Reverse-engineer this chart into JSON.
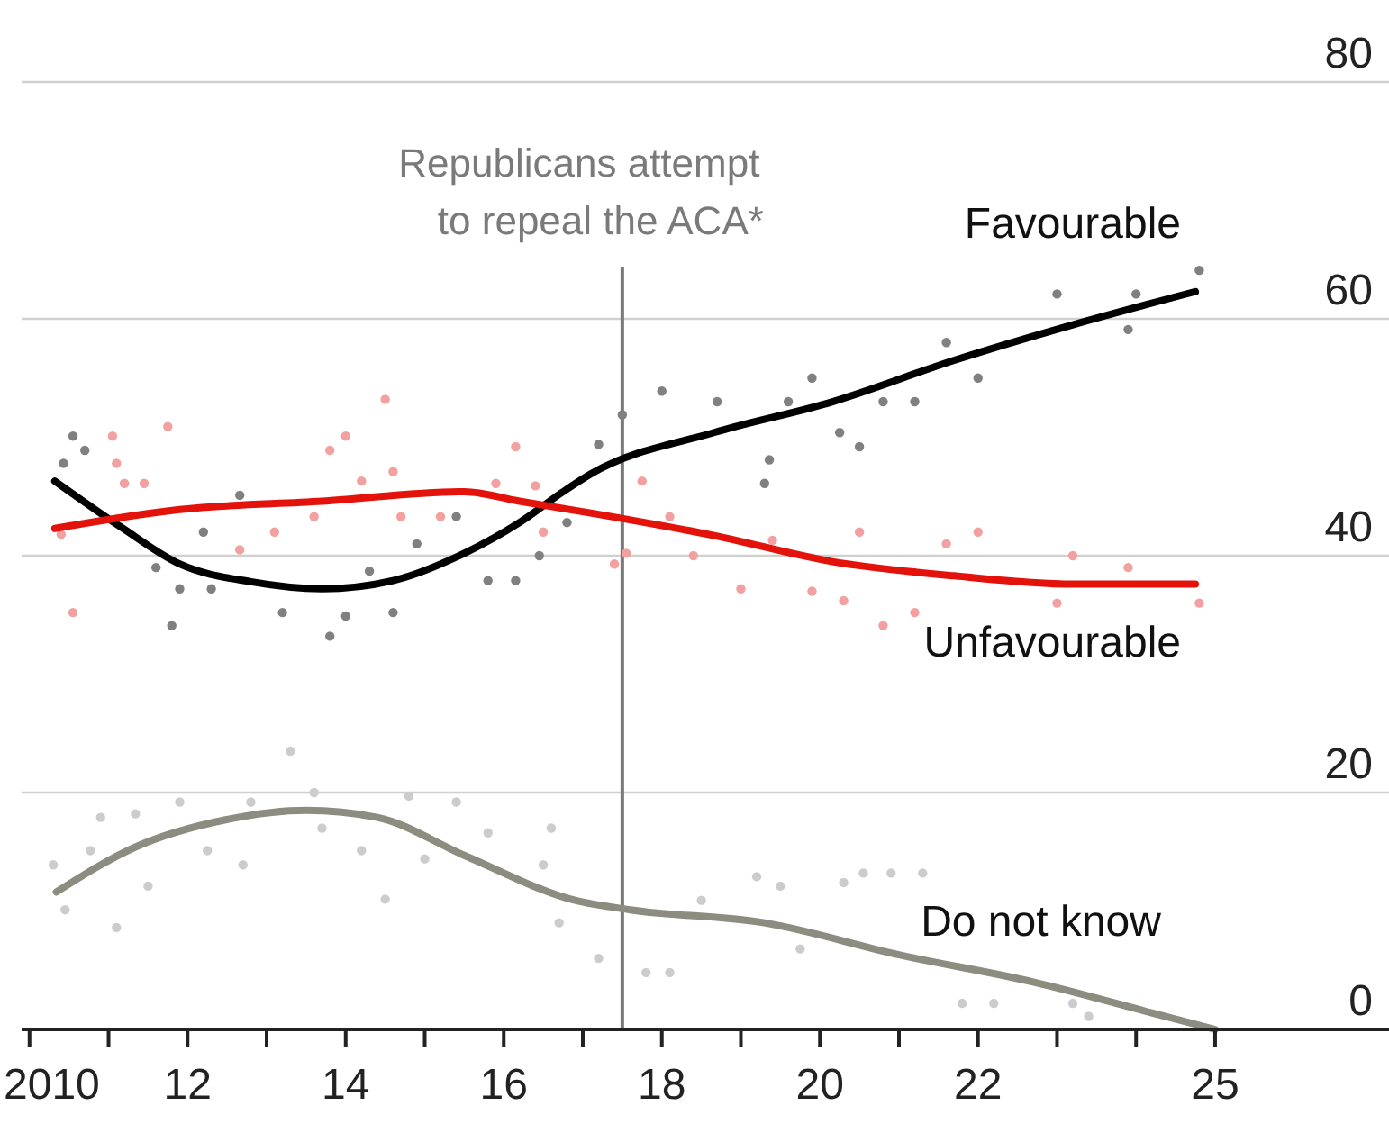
{
  "chart_data": {
    "type": "line",
    "xlim": [
      2009.9,
      2027.2
    ],
    "ylim": [
      0,
      80
    ],
    "xticks": [
      2010,
      {
        "value": 2011,
        "label": null
      },
      {
        "value": 2012,
        "label": "12"
      },
      {
        "value": 2013,
        "label": null
      },
      {
        "value": 2014,
        "label": "14"
      },
      {
        "value": 2015,
        "label": null
      },
      {
        "value": 2016,
        "label": "16"
      },
      {
        "value": 2017,
        "label": null
      },
      {
        "value": 2018,
        "label": "18"
      },
      {
        "value": 2019,
        "label": null
      },
      {
        "value": 2020,
        "label": "20"
      },
      {
        "value": 2021,
        "label": null
      },
      {
        "value": 2022,
        "label": "22"
      },
      {
        "value": 2023,
        "label": null
      },
      {
        "value": 2024,
        "label": null
      },
      {
        "value": 2025,
        "label": "25"
      }
    ],
    "yticks": [
      0,
      20,
      40,
      60,
      80
    ],
    "grid": "y",
    "legend": false,
    "ref_lines": [
      {
        "axis": "x",
        "value": 2017.5,
        "label": "Republicans attempt\nto repeal the ACA*",
        "color": "#7a7a7a"
      }
    ],
    "series": [
      {
        "type": "scatter",
        "marker": "circle",
        "color": "#808080",
        "x": [
          2010.55,
          2010.7,
          2010.43,
          2011.6,
          2011.8,
          2011.9,
          2012.3,
          2012.66,
          2012.2,
          2013.2,
          2013.8,
          2014.0,
          2014.3,
          2014.6,
          2014.9,
          2015.4,
          2015.8,
          2016.15,
          2016.45,
          2016.8,
          2017.2,
          2017.5,
          2018.0,
          2018.7,
          2019.3,
          2019.36,
          2019.6,
          2019.9,
          2020.25,
          2020.5,
          2020.8,
          2021.2,
          2021.6,
          2022.0,
          2023.0,
          2023.9,
          2024.0,
          2024.8
        ],
        "values": [
          50.1,
          48.9,
          47.8,
          39.0,
          34.1,
          37.2,
          37.2,
          45.1,
          42.0,
          35.2,
          33.2,
          34.9,
          38.7,
          35.2,
          41.0,
          43.3,
          37.9,
          37.9,
          40.0,
          42.8,
          49.4,
          51.9,
          53.9,
          53.0,
          46.1,
          48.1,
          53.0,
          55.0,
          50.4,
          49.2,
          53.0,
          53.0,
          58.0,
          55.0,
          62.1,
          59.1,
          62.1,
          64.1
        ]
      },
      {
        "type": "scatter",
        "marker": "circle",
        "color": "#f2a0a0",
        "x": [
          2011.05,
          2011.75,
          2011.1,
          2011.2,
          2011.45,
          2010.55,
          2010.4,
          2012.66,
          2013.1,
          2013.6,
          2013.8,
          2014.0,
          2014.2,
          2014.5,
          2014.6,
          2014.7,
          2015.2,
          2015.9,
          2016.15,
          2016.4,
          2016.5,
          2017.4,
          2017.55,
          2017.75,
          2018.1,
          2018.4,
          2019.0,
          2019.4,
          2019.9,
          2020.3,
          2020.5,
          2020.8,
          2021.2,
          2021.6,
          2022.0,
          2023.0,
          2023.2,
          2023.9,
          2024.8
        ],
        "values": [
          50.1,
          50.9,
          47.8,
          46.1,
          46.1,
          35.2,
          41.8,
          40.5,
          42.0,
          43.3,
          48.9,
          50.1,
          46.3,
          53.2,
          47.1,
          43.3,
          43.3,
          46.1,
          49.2,
          45.9,
          42.0,
          39.3,
          40.2,
          46.3,
          43.3,
          40.0,
          37.2,
          41.3,
          37.0,
          36.2,
          42.0,
          34.1,
          35.2,
          41.0,
          42.0,
          36.0,
          40.0,
          39.0,
          36.0
        ]
      },
      {
        "type": "scatter",
        "marker": "circle",
        "color": "#cccccc",
        "x": [
          2010.3,
          2010.45,
          2010.77,
          2011.1,
          2010.9,
          2011.34,
          2011.5,
          2011.9,
          2012.25,
          2012.7,
          2012.8,
          2013.3,
          2013.6,
          2013.7,
          2014.2,
          2014.5,
          2014.8,
          2015.0,
          2015.4,
          2015.8,
          2016.5,
          2016.6,
          2016.7,
          2017.2,
          2017.8,
          2018.1,
          2018.5,
          2019.2,
          2019.5,
          2019.75,
          2020.3,
          2020.55,
          2020.9,
          2021.3,
          2021.8,
          2022.2,
          2023.2,
          2023.4
        ],
        "values": [
          13.9,
          10.1,
          15.1,
          8.6,
          17.9,
          18.2,
          12.1,
          19.2,
          15.1,
          13.9,
          19.2,
          23.5,
          20.0,
          17.0,
          15.1,
          11.0,
          19.7,
          14.4,
          19.2,
          16.6,
          13.9,
          17.0,
          9.0,
          6.0,
          4.8,
          4.8,
          10.9,
          12.9,
          12.1,
          6.8,
          12.4,
          13.2,
          13.2,
          13.2,
          2.2,
          2.2,
          2.2,
          1.1
        ]
      },
      {
        "name": "Favourable",
        "color": "#000000",
        "x": [
          2010.32,
          2011.16,
          2011.9,
          2012.8,
          2013.7,
          2014.6,
          2015.5,
          2016.2,
          2016.75,
          2017.1,
          2018.66,
          2020.16,
          2021.7,
          2023.2,
          2024.75
        ],
        "values": [
          46.3,
          42.4,
          39.3,
          37.8,
          37.2,
          37.9,
          40.2,
          42.8,
          45.4,
          46.9,
          50.4,
          53.0,
          56.5,
          59.5,
          62.3
        ]
      },
      {
        "name": "Unfavourable",
        "color": "#e3120b",
        "x": [
          2010.32,
          2011.9,
          2013.7,
          2015.5,
          2016.2,
          2017.1,
          2018.66,
          2020.16,
          2021.7,
          2023.2,
          2024.75
        ],
        "values": [
          42.3,
          43.9,
          44.6,
          45.4,
          44.6,
          43.6,
          41.7,
          39.5,
          38.3,
          37.6,
          37.6
        ]
      },
      {
        "name": "Do not know",
        "color": "#8c8c80",
        "x": [
          2010.34,
          2011.34,
          2012.48,
          2013.5,
          2014.4,
          2015.5,
          2016.9,
          2017.6,
          2019.3,
          2021.0,
          2022.7,
          2024.2,
          2025.0
        ],
        "values": [
          11.6,
          15.4,
          17.7,
          18.5,
          17.9,
          14.7,
          10.9,
          10.1,
          9.0,
          6.3,
          4.0,
          1.4,
          0
        ]
      }
    ]
  }
}
